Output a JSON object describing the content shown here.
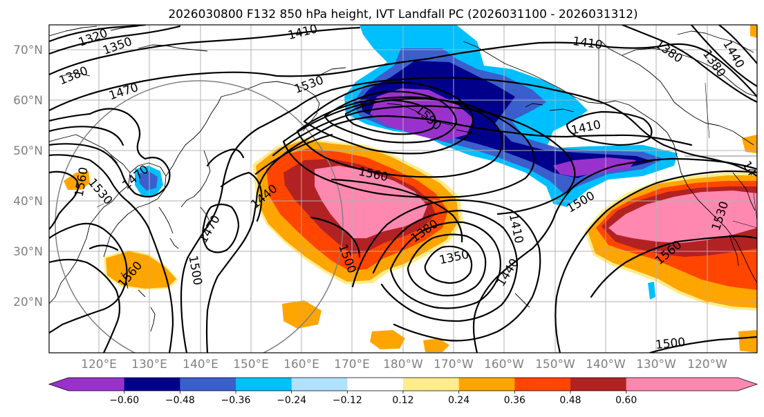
{
  "title": "2026030800 F132 850 hPa height, IVT Landfall PC (2026031100 - 2026031312)",
  "lat_ticks": [
    "20°N",
    "30°N",
    "40°N",
    "50°N",
    "60°N",
    "70°N"
  ],
  "lon_ticks": [
    "120°E",
    "130°E",
    "140°E",
    "150°E",
    "160°E",
    "170°E",
    "180°W",
    "170°W",
    "160°W",
    "150°W",
    "140°W",
    "130°W",
    "120°W"
  ],
  "colorbar": {
    "ticks": [
      "−0.60",
      "−0.48",
      "−0.36",
      "−0.24",
      "−0.12",
      "0.12",
      "0.24",
      "0.36",
      "0.48",
      "0.60"
    ],
    "colors": [
      "#9932cc",
      "#00008b",
      "#3a5fcd",
      "#00bfff",
      "#b0e2ff",
      "#ffffff",
      "#ffec8b",
      "#ffa500",
      "#ff4500",
      "#b22222",
      "#ff88b0",
      "#ff88b0"
    ]
  },
  "contour_labels": [
    {
      "text": "1320"
    },
    {
      "text": "1350"
    },
    {
      "text": "1380"
    },
    {
      "text": "1410"
    },
    {
      "text": "1470"
    },
    {
      "text": "1530"
    },
    {
      "text": "1410"
    },
    {
      "text": "1380"
    },
    {
      "text": "1380"
    },
    {
      "text": "1440"
    },
    {
      "text": "1590"
    },
    {
      "text": "1410"
    },
    {
      "text": "1470"
    },
    {
      "text": "1560"
    },
    {
      "text": "1530"
    },
    {
      "text": "1440"
    },
    {
      "text": "1560"
    },
    {
      "text": "1500"
    },
    {
      "text": "1470"
    },
    {
      "text": "1380"
    },
    {
      "text": "1410"
    },
    {
      "text": "1350"
    },
    {
      "text": "1500"
    },
    {
      "text": "1440"
    },
    {
      "text": "1560"
    },
    {
      "text": "1530"
    },
    {
      "text": "1560"
    },
    {
      "text": "1500"
    },
    {
      "text": "1500"
    },
    {
      "text": "14"
    }
  ]
}
